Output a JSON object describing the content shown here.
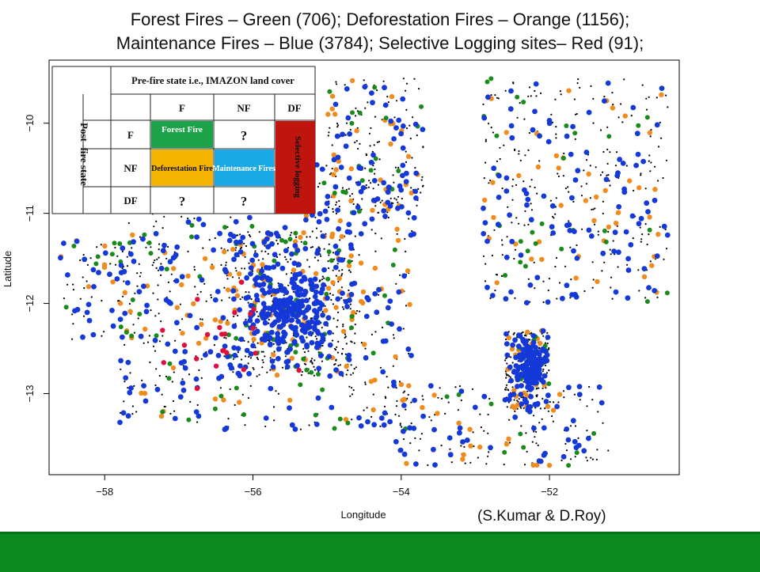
{
  "title": {
    "line1": "Forest Fires – Green (706); Deforestation Fires – Orange (1156);",
    "line2": "Maintenance Fires – Blue (3784); Selective Logging sites– Red (91);"
  },
  "citation": "(S.Kumar & D.Roy)",
  "colors": {
    "forest": "#1a8a1a",
    "deforestation": "#f08c1e",
    "maintenance": "#1538d8",
    "logging": "#e0103c",
    "background_points": "#000000",
    "footer": "#0a8a1f"
  },
  "legend_table": {
    "header": "Pre-fire state i.e., IMAZON land cover",
    "row_header": "Post -fire  state",
    "columns": [
      "F",
      "NF",
      "DF"
    ],
    "rows": [
      "F",
      "NF",
      "DF"
    ],
    "cells": {
      "F_F": "Forest Fire",
      "F_NF": "?",
      "NF_F": "Deforestation Fire",
      "NF_NF": "Maintenance Fires",
      "DF_F": "?",
      "DF_NF": "?",
      "DF_col": "Selective logging"
    },
    "cell_colors": {
      "forest": "#1ca34a",
      "deforestation": "#f5b400",
      "maintenance": "#1aa8e6",
      "logging": "#c0150f"
    }
  },
  "chart_data": {
    "type": "scatter",
    "title": "Forest Fires – Green (706); Deforestation Fires – Orange (1156); Maintenance Fires – Blue (3784); Selective Logging sites– Red (91);",
    "xlabel": "Longitude",
    "ylabel": "Latitude",
    "xlim": [
      -58.75,
      -50.25
    ],
    "ylim": [
      -13.9,
      -9.3
    ],
    "x_ticks": [
      -58,
      -56,
      -54,
      -52
    ],
    "x_tick_labels": [
      "−58",
      "−56",
      "−54",
      "−52"
    ],
    "y_ticks": [
      -10,
      -11,
      -12,
      -13
    ],
    "y_tick_labels": [
      "−10",
      "−11",
      "−12",
      "−13"
    ],
    "grid": false,
    "series": [
      {
        "name": "Forest Fires – Green",
        "count": 706,
        "color": "#1a8a1a"
      },
      {
        "name": "Deforestation Fires – Orange",
        "count": 1156,
        "color": "#f08c1e"
      },
      {
        "name": "Maintenance Fires – Blue",
        "count": 3784,
        "color": "#1538d8"
      },
      {
        "name": "Selective Logging sites– Red",
        "count": 91,
        "color": "#e0103c"
      }
    ]
  }
}
